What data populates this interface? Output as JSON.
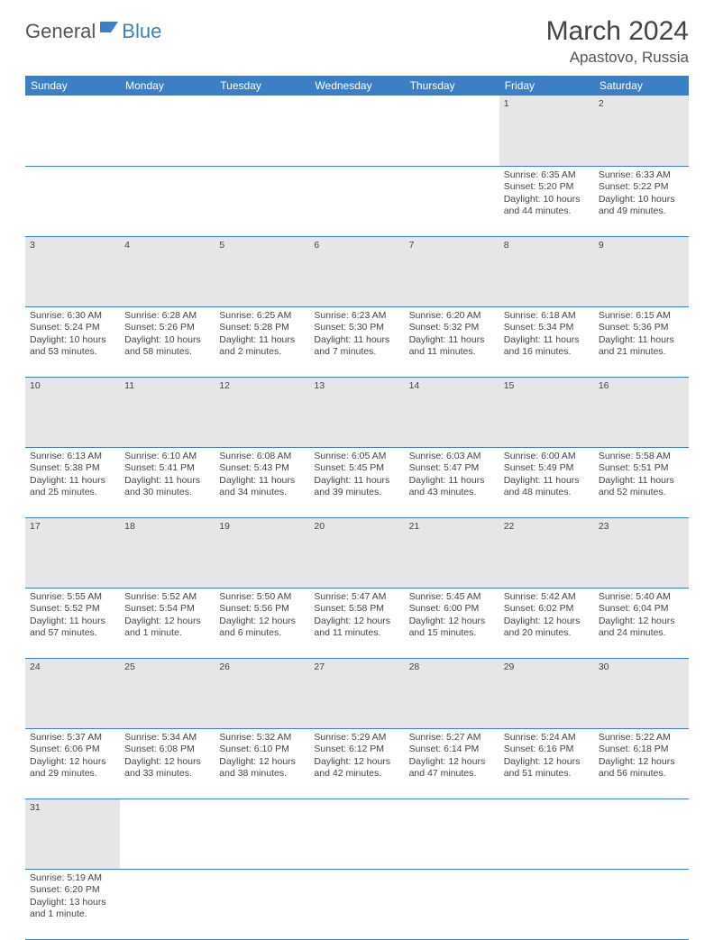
{
  "logo": {
    "text1": "General",
    "text2": "Blue"
  },
  "title": "March 2024",
  "location": "Apastovo, Russia",
  "colors": {
    "header_bg": "#3b7fc4",
    "header_fg": "#ffffff",
    "daynum_bg": "#e6e6e6",
    "border": "#3b7fc4"
  },
  "weekdays": [
    "Sunday",
    "Monday",
    "Tuesday",
    "Wednesday",
    "Thursday",
    "Friday",
    "Saturday"
  ],
  "weeks": [
    [
      null,
      null,
      null,
      null,
      null,
      {
        "n": "1",
        "sr": "Sunrise: 6:35 AM",
        "ss": "Sunset: 5:20 PM",
        "dl": "Daylight: 10 hours and 44 minutes."
      },
      {
        "n": "2",
        "sr": "Sunrise: 6:33 AM",
        "ss": "Sunset: 5:22 PM",
        "dl": "Daylight: 10 hours and 49 minutes."
      }
    ],
    [
      {
        "n": "3",
        "sr": "Sunrise: 6:30 AM",
        "ss": "Sunset: 5:24 PM",
        "dl": "Daylight: 10 hours and 53 minutes."
      },
      {
        "n": "4",
        "sr": "Sunrise: 6:28 AM",
        "ss": "Sunset: 5:26 PM",
        "dl": "Daylight: 10 hours and 58 minutes."
      },
      {
        "n": "5",
        "sr": "Sunrise: 6:25 AM",
        "ss": "Sunset: 5:28 PM",
        "dl": "Daylight: 11 hours and 2 minutes."
      },
      {
        "n": "6",
        "sr": "Sunrise: 6:23 AM",
        "ss": "Sunset: 5:30 PM",
        "dl": "Daylight: 11 hours and 7 minutes."
      },
      {
        "n": "7",
        "sr": "Sunrise: 6:20 AM",
        "ss": "Sunset: 5:32 PM",
        "dl": "Daylight: 11 hours and 11 minutes."
      },
      {
        "n": "8",
        "sr": "Sunrise: 6:18 AM",
        "ss": "Sunset: 5:34 PM",
        "dl": "Daylight: 11 hours and 16 minutes."
      },
      {
        "n": "9",
        "sr": "Sunrise: 6:15 AM",
        "ss": "Sunset: 5:36 PM",
        "dl": "Daylight: 11 hours and 21 minutes."
      }
    ],
    [
      {
        "n": "10",
        "sr": "Sunrise: 6:13 AM",
        "ss": "Sunset: 5:38 PM",
        "dl": "Daylight: 11 hours and 25 minutes."
      },
      {
        "n": "11",
        "sr": "Sunrise: 6:10 AM",
        "ss": "Sunset: 5:41 PM",
        "dl": "Daylight: 11 hours and 30 minutes."
      },
      {
        "n": "12",
        "sr": "Sunrise: 6:08 AM",
        "ss": "Sunset: 5:43 PM",
        "dl": "Daylight: 11 hours and 34 minutes."
      },
      {
        "n": "13",
        "sr": "Sunrise: 6:05 AM",
        "ss": "Sunset: 5:45 PM",
        "dl": "Daylight: 11 hours and 39 minutes."
      },
      {
        "n": "14",
        "sr": "Sunrise: 6:03 AM",
        "ss": "Sunset: 5:47 PM",
        "dl": "Daylight: 11 hours and 43 minutes."
      },
      {
        "n": "15",
        "sr": "Sunrise: 6:00 AM",
        "ss": "Sunset: 5:49 PM",
        "dl": "Daylight: 11 hours and 48 minutes."
      },
      {
        "n": "16",
        "sr": "Sunrise: 5:58 AM",
        "ss": "Sunset: 5:51 PM",
        "dl": "Daylight: 11 hours and 52 minutes."
      }
    ],
    [
      {
        "n": "17",
        "sr": "Sunrise: 5:55 AM",
        "ss": "Sunset: 5:52 PM",
        "dl": "Daylight: 11 hours and 57 minutes."
      },
      {
        "n": "18",
        "sr": "Sunrise: 5:52 AM",
        "ss": "Sunset: 5:54 PM",
        "dl": "Daylight: 12 hours and 1 minute."
      },
      {
        "n": "19",
        "sr": "Sunrise: 5:50 AM",
        "ss": "Sunset: 5:56 PM",
        "dl": "Daylight: 12 hours and 6 minutes."
      },
      {
        "n": "20",
        "sr": "Sunrise: 5:47 AM",
        "ss": "Sunset: 5:58 PM",
        "dl": "Daylight: 12 hours and 11 minutes."
      },
      {
        "n": "21",
        "sr": "Sunrise: 5:45 AM",
        "ss": "Sunset: 6:00 PM",
        "dl": "Daylight: 12 hours and 15 minutes."
      },
      {
        "n": "22",
        "sr": "Sunrise: 5:42 AM",
        "ss": "Sunset: 6:02 PM",
        "dl": "Daylight: 12 hours and 20 minutes."
      },
      {
        "n": "23",
        "sr": "Sunrise: 5:40 AM",
        "ss": "Sunset: 6:04 PM",
        "dl": "Daylight: 12 hours and 24 minutes."
      }
    ],
    [
      {
        "n": "24",
        "sr": "Sunrise: 5:37 AM",
        "ss": "Sunset: 6:06 PM",
        "dl": "Daylight: 12 hours and 29 minutes."
      },
      {
        "n": "25",
        "sr": "Sunrise: 5:34 AM",
        "ss": "Sunset: 6:08 PM",
        "dl": "Daylight: 12 hours and 33 minutes."
      },
      {
        "n": "26",
        "sr": "Sunrise: 5:32 AM",
        "ss": "Sunset: 6:10 PM",
        "dl": "Daylight: 12 hours and 38 minutes."
      },
      {
        "n": "27",
        "sr": "Sunrise: 5:29 AM",
        "ss": "Sunset: 6:12 PM",
        "dl": "Daylight: 12 hours and 42 minutes."
      },
      {
        "n": "28",
        "sr": "Sunrise: 5:27 AM",
        "ss": "Sunset: 6:14 PM",
        "dl": "Daylight: 12 hours and 47 minutes."
      },
      {
        "n": "29",
        "sr": "Sunrise: 5:24 AM",
        "ss": "Sunset: 6:16 PM",
        "dl": "Daylight: 12 hours and 51 minutes."
      },
      {
        "n": "30",
        "sr": "Sunrise: 5:22 AM",
        "ss": "Sunset: 6:18 PM",
        "dl": "Daylight: 12 hours and 56 minutes."
      }
    ],
    [
      {
        "n": "31",
        "sr": "Sunrise: 5:19 AM",
        "ss": "Sunset: 6:20 PM",
        "dl": "Daylight: 13 hours and 1 minute."
      },
      null,
      null,
      null,
      null,
      null,
      null
    ]
  ]
}
